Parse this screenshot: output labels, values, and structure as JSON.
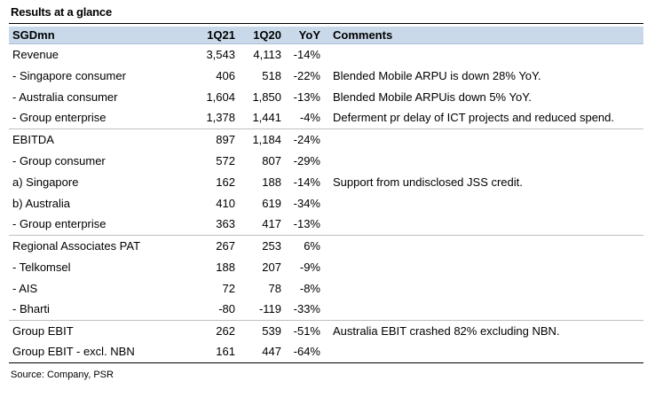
{
  "title": "Results at a glance",
  "headers": {
    "label": "SGDmn",
    "q1": "1Q21",
    "q2": "1Q20",
    "yoy": "YoY",
    "comments": "Comments"
  },
  "rows": [
    {
      "label": "Revenue",
      "q1": "3,543",
      "q2": "4,113",
      "yoy": "-14%",
      "comment": ""
    },
    {
      "label": " - Singapore consumer",
      "q1": "406",
      "q2": "518",
      "yoy": "-22%",
      "comment": "Blended Mobile ARPU is down 28% YoY."
    },
    {
      "label": " - Australia consumer",
      "q1": "1,604",
      "q2": "1,850",
      "yoy": "-13%",
      "comment": "Blended Mobile ARPUis down 5% YoY."
    },
    {
      "label": " - Group enterprise",
      "q1": "1,378",
      "q2": "1,441",
      "yoy": "-4%",
      "comment": "Deferment pr delay of ICT projects and reduced spend."
    },
    {
      "label": "EBITDA",
      "q1": "897",
      "q2": "1,184",
      "yoy": "-24%",
      "comment": ""
    },
    {
      "label": " - Group consumer",
      "q1": "572",
      "q2": "807",
      "yoy": "-29%",
      "comment": ""
    },
    {
      "label": "a) Singapore",
      "q1": "162",
      "q2": "188",
      "yoy": "-14%",
      "comment": "Support from undisclosed JSS credit."
    },
    {
      "label": "b) Australia",
      "q1": "410",
      "q2": "619",
      "yoy": "-34%",
      "comment": ""
    },
    {
      "label": " - Group enterprise",
      "q1": "363",
      "q2": "417",
      "yoy": "-13%",
      "comment": ""
    },
    {
      "label": "Regional Associates PAT",
      "q1": "267",
      "q2": "253",
      "yoy": "6%",
      "comment": ""
    },
    {
      "label": " - Telkomsel",
      "q1": "188",
      "q2": "207",
      "yoy": "-9%",
      "comment": ""
    },
    {
      "label": " - AIS",
      "q1": "72",
      "q2": "78",
      "yoy": "-8%",
      "comment": ""
    },
    {
      "label": " - Bharti",
      "q1": "-80",
      "q2": "-119",
      "yoy": "-33%",
      "comment": ""
    },
    {
      "label": "Group EBIT",
      "q1": "262",
      "q2": "539",
      "yoy": "-51%",
      "comment": "Australia EBIT crashed 82% excluding NBN."
    },
    {
      "label": "Group EBIT - excl. NBN",
      "q1": "161",
      "q2": "447",
      "yoy": "-64%",
      "comment": ""
    }
  ],
  "source": "Source: Company, PSR"
}
